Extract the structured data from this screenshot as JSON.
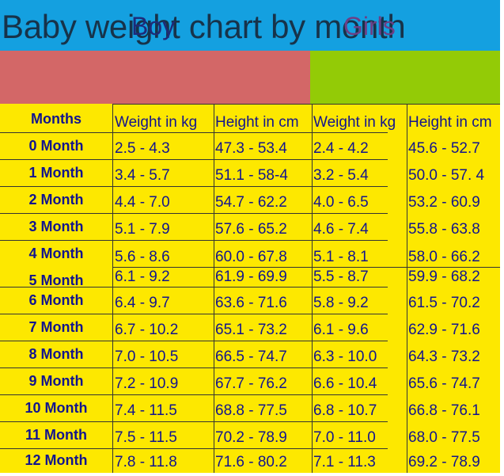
{
  "title": "Baby weight chart by month",
  "groups": {
    "boy": "Boy",
    "girls": "Girls"
  },
  "headers": {
    "months": "Months",
    "boy_weight": "Weight in kg",
    "boy_height": "Height in cm",
    "girl_weight": "Weight in kg",
    "girl_height": "Height in cm"
  },
  "rows": [
    {
      "month": "0 Month",
      "boy_weight": "2.5 - 4.3",
      "boy_height": "47.3 - 53.4",
      "girl_weight": "2.4 - 4.2",
      "girl_height": "45.6 - 52.7"
    },
    {
      "month": "1 Month",
      "boy_weight": "3.4 - 5.7",
      "boy_height": "51.1 - 58-4",
      "girl_weight": "3.2 - 5.4",
      "girl_height": "50.0 - 57. 4"
    },
    {
      "month": "2 Month",
      "boy_weight": "4.4 - 7.0",
      "boy_height": "54.7 - 62.2",
      "girl_weight": "4.0 - 6.5",
      "girl_height": "53.2 - 60.9"
    },
    {
      "month": "3 Month",
      "boy_weight": "5.1 - 7.9",
      "boy_height": "57.6 - 65.2",
      "girl_weight": "4.6 - 7.4",
      "girl_height": "55.8 - 63.8"
    },
    {
      "month": "4 Month",
      "boy_weight": "5.6 - 8.6",
      "boy_height": "60.0 - 67.8",
      "girl_weight": "5.1 - 8.1",
      "girl_height": "58.0 - 66.2"
    },
    {
      "month": "5 Month",
      "boy_weight": "6.1 - 9.2",
      "boy_height": "61.9 - 69.9",
      "girl_weight": "5.5 - 8.7",
      "girl_height": "59.9 - 68.2"
    },
    {
      "month": "6 Month",
      "boy_weight": "6.4 - 9.7",
      "boy_height": "63.6 - 71.6",
      "girl_weight": "5.8 - 9.2",
      "girl_height": "61.5 - 70.2"
    },
    {
      "month": "7 Month",
      "boy_weight": "6.7 - 10.2",
      "boy_height": "65.1 - 73.2",
      "girl_weight": "6.1 - 9.6",
      "girl_height": "62.9 - 71.6"
    },
    {
      "month": "8 Month",
      "boy_weight": "7.0 - 10.5",
      "boy_height": "66.5 - 74.7",
      "girl_weight": "6.3 - 10.0",
      "girl_height": "64.3 - 73.2"
    },
    {
      "month": "9 Month",
      "boy_weight": "7.2 - 10.9",
      "boy_height": "67.7 - 76.2",
      "girl_weight": "6.6 - 10.4",
      "girl_height": "65.6 - 74.7"
    },
    {
      "month": "10 Month",
      "boy_weight": "7.4 - 11.5",
      "boy_height": "68.8 - 77.5",
      "girl_weight": "6.8 - 10.7",
      "girl_height": "66.8 - 76.1"
    },
    {
      "month": "11 Month",
      "boy_weight": "7.5 - 11.5",
      "boy_height": "70.2 - 78.9",
      "girl_weight": "7.0 - 11.0",
      "girl_height": "68.0 - 77.5"
    },
    {
      "month": "12 Month",
      "boy_weight": "7.8 - 11.8",
      "boy_height": "71.6 - 80.2",
      "girl_weight": "7.1 - 11.3",
      "girl_height": "69.2 - 78.9"
    }
  ],
  "colors": {
    "title_bg": "#14a0e0",
    "boy_bg": "#d36767",
    "girls_bg": "#93cb06",
    "table_bg": "#fde800",
    "table_text": "#12148e"
  }
}
